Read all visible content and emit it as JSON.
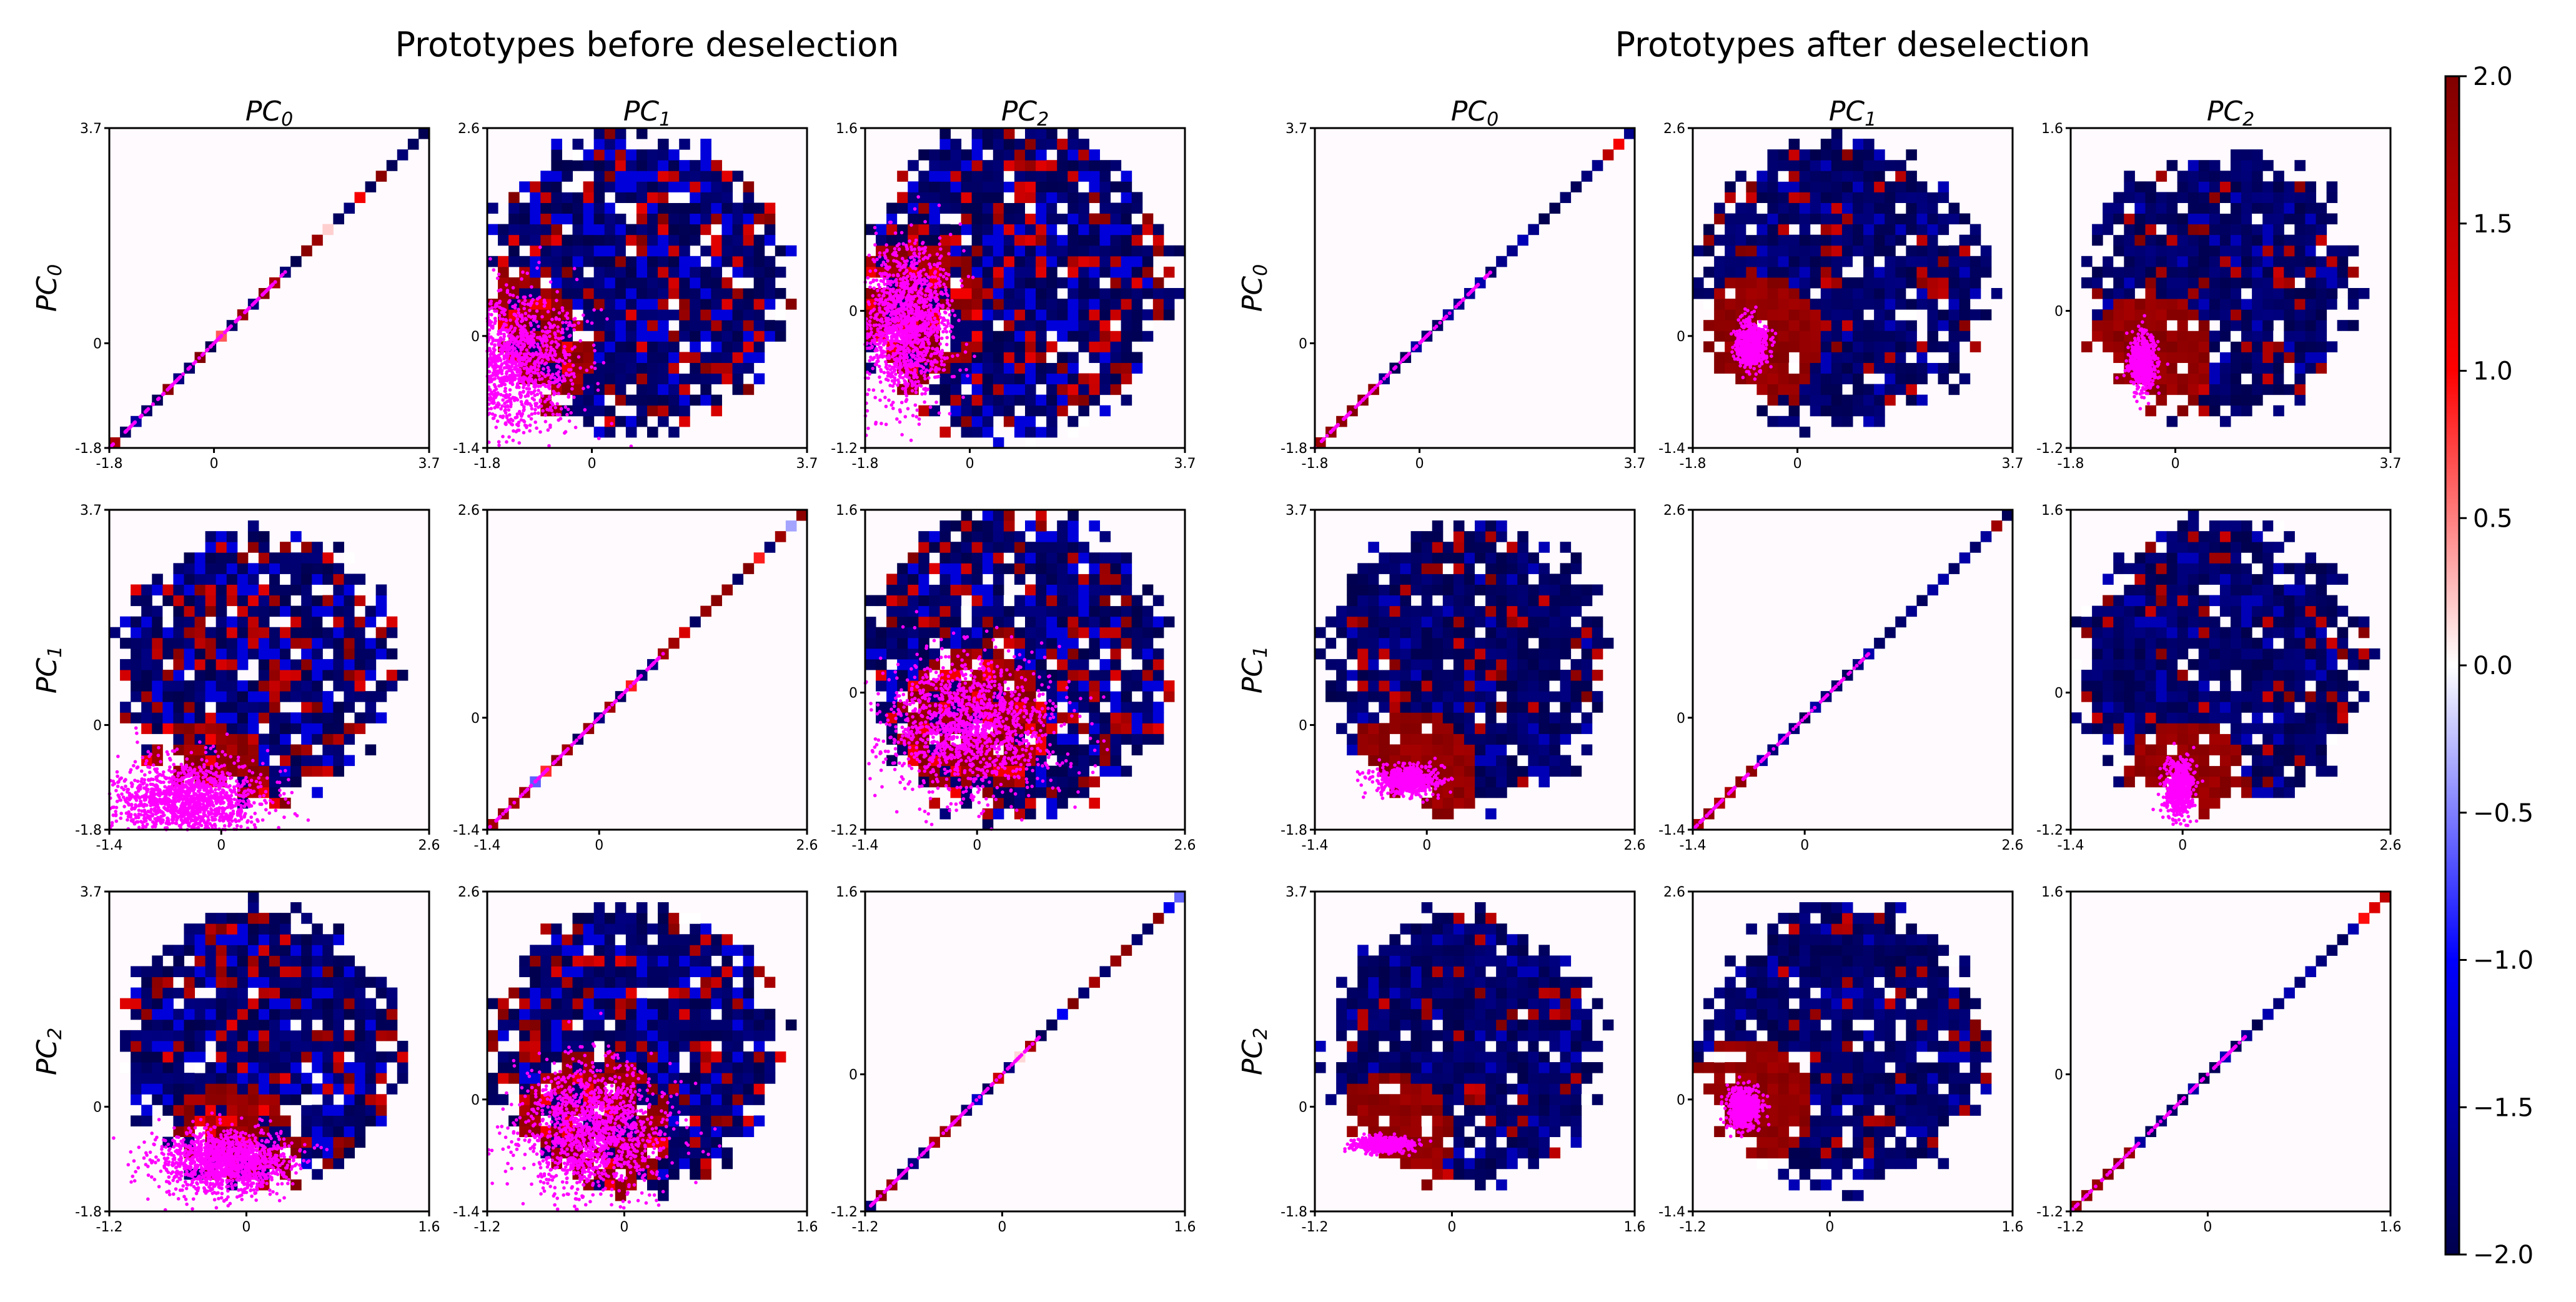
{
  "figure": {
    "left_title": "Prototypes before deselection",
    "right_title": "Prototypes after deselection",
    "axis_names": [
      "PC0",
      "PC1",
      "PC2"
    ]
  },
  "chart_data": {
    "type": "heatmap",
    "colormap": {
      "name": "seismic-like",
      "vmin": -2.0,
      "vmax": 2.0,
      "ticks": [
        2.0,
        1.5,
        1.0,
        0.5,
        0.0,
        -0.5,
        -1.0,
        -1.5,
        -2.0
      ],
      "tick_labels": [
        "2.0",
        "1.5",
        "1.0",
        "0.5",
        "0.0",
        "−0.5",
        "−1.0",
        "−1.5",
        "−2.0"
      ]
    },
    "overlay_color": "#ff00ff",
    "axis_ranges": {
      "PC0": [
        -1.8,
        3.7
      ],
      "PC1": [
        -1.4,
        2.6
      ],
      "PC2": [
        -1.2,
        1.6
      ]
    },
    "axis_tick_labels": {
      "PC0": [
        "-1.8",
        "0",
        "3.7"
      ],
      "PC1": [
        "-1.4",
        "0",
        "2.6"
      ],
      "PC2": [
        "-1.2",
        "0",
        "1.6"
      ]
    },
    "grid": false,
    "groups": [
      {
        "name": "before",
        "panels": [
          {
            "row": 0,
            "col": 0,
            "kind": "diagonal",
            "diag_color": "mixed"
          },
          {
            "row": 0,
            "col": 1,
            "kind": "heatmap",
            "cluster": [
              -1.4,
              -0.3
            ],
            "spread": [
              0.55,
              0.55
            ],
            "points": 1400
          },
          {
            "row": 0,
            "col": 2,
            "kind": "heatmap",
            "cluster": [
              -1.1,
              -0.1
            ],
            "spread": [
              0.35,
              0.6
            ],
            "points": 1400
          },
          {
            "row": 1,
            "col": 0,
            "kind": "heatmap",
            "cluster": [
              -0.4,
              -1.3
            ],
            "spread": [
              0.6,
              0.3
            ],
            "points": 1400
          },
          {
            "row": 1,
            "col": 1,
            "kind": "diagonal",
            "diag_color": "mixed"
          },
          {
            "row": 1,
            "col": 2,
            "kind": "heatmap",
            "cluster": [
              -0.1,
              -0.3
            ],
            "spread": [
              0.7,
              0.55
            ],
            "points": 1400
          },
          {
            "row": 2,
            "col": 0,
            "kind": "heatmap",
            "cluster": [
              -0.2,
              -0.95
            ],
            "spread": [
              0.5,
              0.25
            ],
            "points": 1400
          },
          {
            "row": 2,
            "col": 1,
            "kind": "heatmap",
            "cluster": [
              -0.3,
              -0.4
            ],
            "spread": [
              0.6,
              0.55
            ],
            "points": 1400
          },
          {
            "row": 2,
            "col": 2,
            "kind": "diagonal",
            "diag_color": "mixed"
          }
        ]
      },
      {
        "name": "after",
        "panels": [
          {
            "row": 0,
            "col": 0,
            "kind": "diagonal",
            "diag_color": "dark"
          },
          {
            "row": 0,
            "col": 1,
            "kind": "heatmap",
            "cluster": [
              -0.8,
              -0.1
            ],
            "spread": [
              0.12,
              0.18
            ],
            "points": 600
          },
          {
            "row": 0,
            "col": 2,
            "kind": "heatmap",
            "cluster": [
              -0.55,
              -0.45
            ],
            "spread": [
              0.1,
              0.22
            ],
            "points": 600
          },
          {
            "row": 1,
            "col": 0,
            "kind": "heatmap",
            "cluster": [
              -0.25,
              -0.95
            ],
            "spread": [
              0.25,
              0.12
            ],
            "points": 600
          },
          {
            "row": 1,
            "col": 1,
            "kind": "diagonal",
            "diag_color": "dark"
          },
          {
            "row": 1,
            "col": 2,
            "kind": "heatmap",
            "cluster": [
              -0.05,
              -0.85
            ],
            "spread": [
              0.12,
              0.22
            ],
            "points": 600
          },
          {
            "row": 2,
            "col": 0,
            "kind": "heatmap",
            "cluster": [
              -0.6,
              -0.65
            ],
            "spread": [
              0.2,
              0.06
            ],
            "points": 600
          },
          {
            "row": 2,
            "col": 1,
            "kind": "heatmap",
            "cluster": [
              -0.75,
              -0.1
            ],
            "spread": [
              0.12,
              0.15
            ],
            "points": 600
          },
          {
            "row": 2,
            "col": 2,
            "kind": "diagonal",
            "diag_color": "dark"
          }
        ]
      }
    ]
  }
}
